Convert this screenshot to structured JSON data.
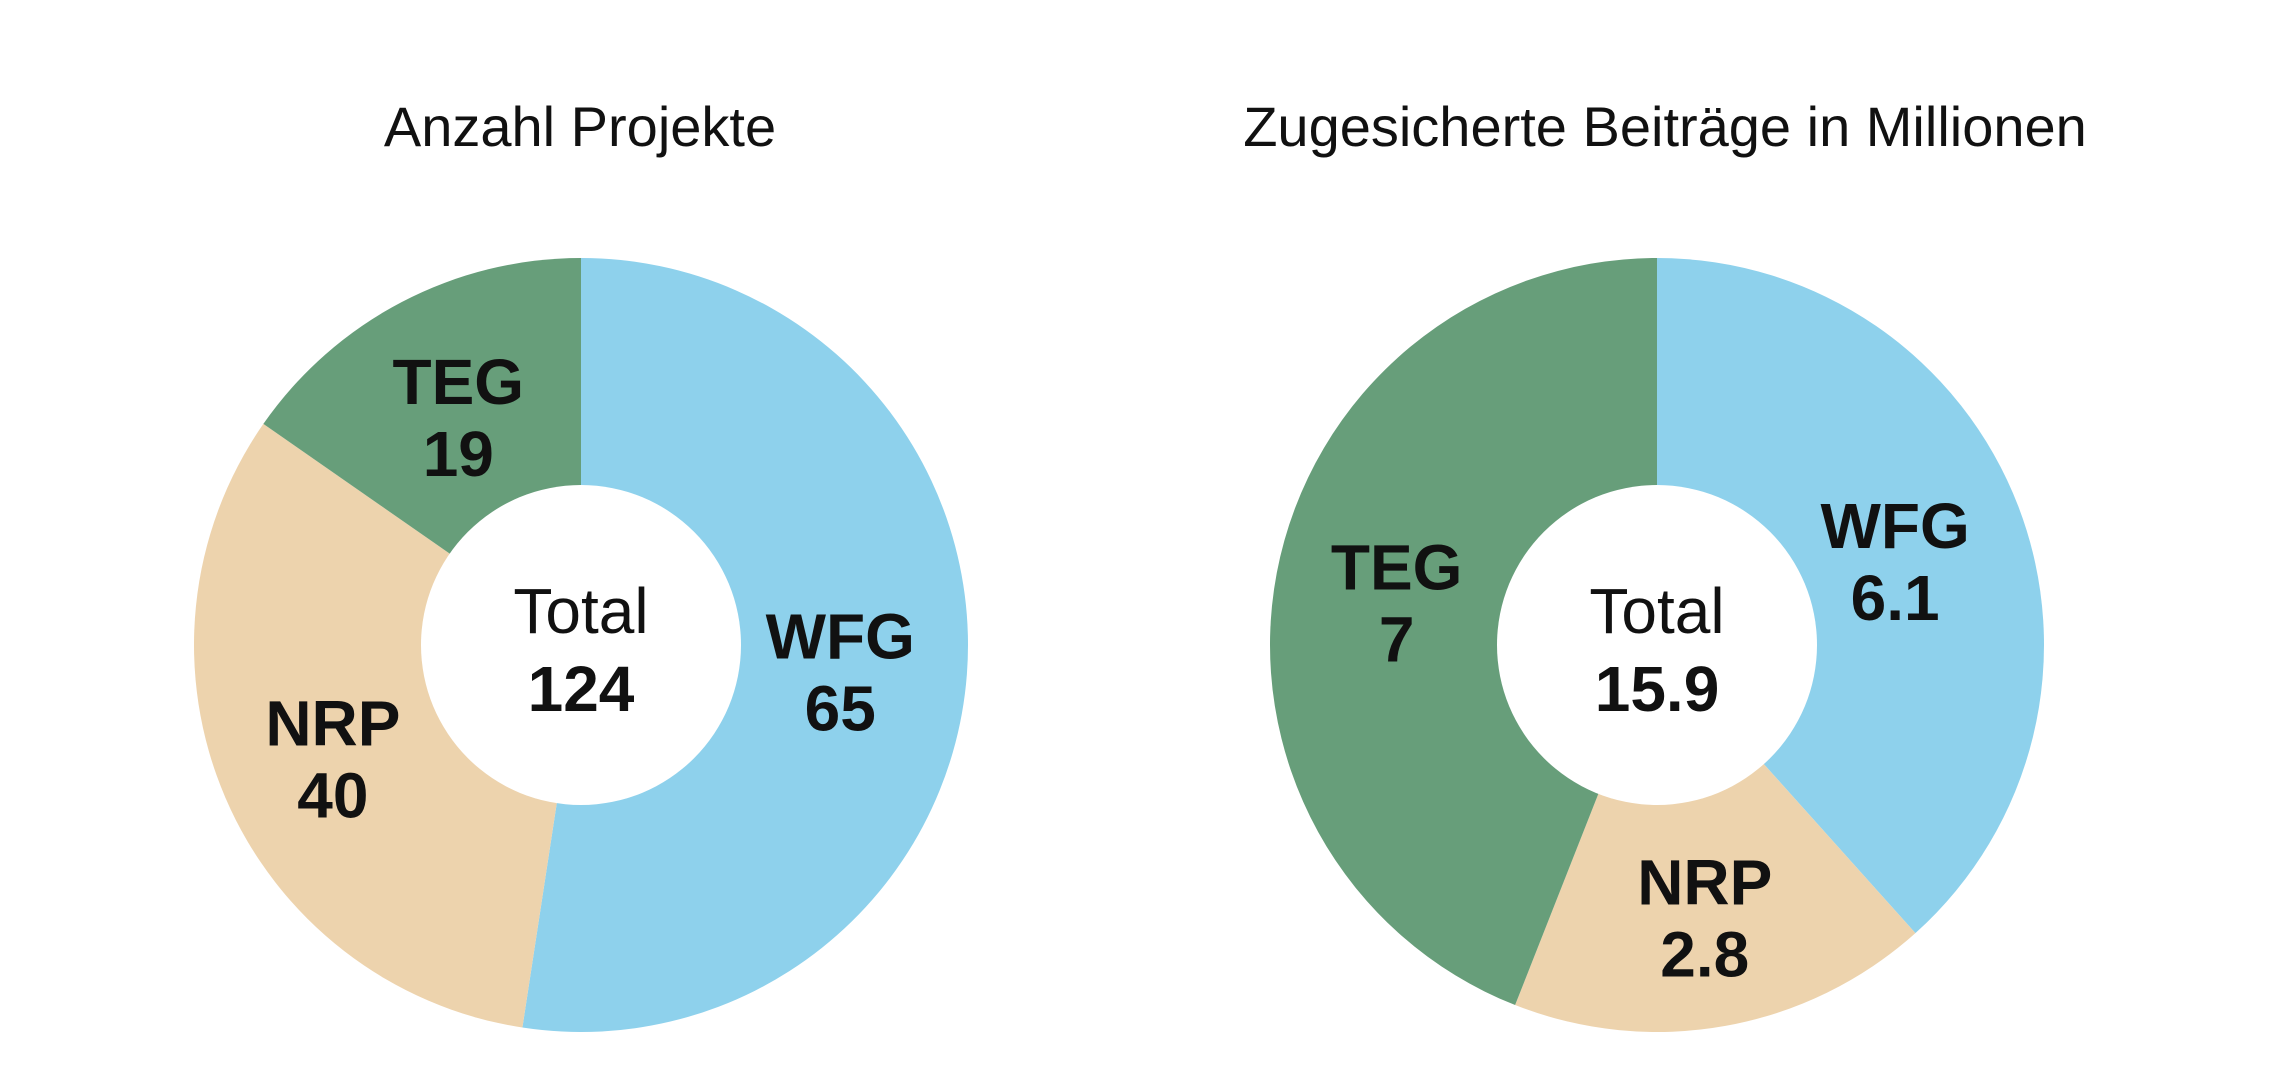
{
  "chart_data": [
    {
      "type": "pie",
      "title": "Anzahl Projekte",
      "center_label": "Total",
      "total": "124",
      "slices": [
        {
          "label": "WFG",
          "value": 65,
          "value_text": "65",
          "color": "#8ed1ec"
        },
        {
          "label": "NRP",
          "value": 40,
          "value_text": "40",
          "color": "#edd3ad"
        },
        {
          "label": "TEG",
          "value": 19,
          "value_text": "19",
          "color": "#679e7a"
        }
      ]
    },
    {
      "type": "pie",
      "title": "Zugesicherte Beiträge in Millionen",
      "center_label": "Total",
      "total": "15.9",
      "slices": [
        {
          "label": "WFG",
          "value": 6.1,
          "value_text": "6.1",
          "color": "#8ed1ec"
        },
        {
          "label": "NRP",
          "value": 2.8,
          "value_text": "2.8",
          "color": "#edd3ad"
        },
        {
          "label": "TEG",
          "value": 7,
          "value_text": "7",
          "color": "#679e7a"
        }
      ]
    }
  ]
}
